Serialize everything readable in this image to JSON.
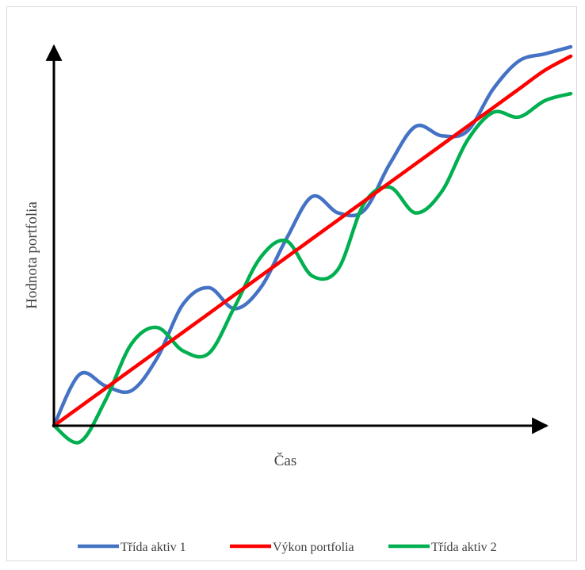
{
  "chart_data": {
    "type": "line",
    "title": "",
    "xlabel": "Čas",
    "ylabel": "Hodnota portfolia",
    "x_ticks_shown": false,
    "y_ticks_shown": false,
    "grid": false,
    "legend_position": "bottom",
    "xlim": [
      0,
      10
    ],
    "ylim": [
      0,
      8
    ],
    "x": [
      0,
      0.5,
      1,
      1.5,
      2,
      2.5,
      3,
      3.5,
      4,
      4.5,
      5,
      5.5,
      6,
      6.5,
      7,
      7.5,
      8,
      8.5,
      9,
      9.5,
      10
    ],
    "series": [
      {
        "name": "Třída aktiv 1",
        "color": "#4472c4",
        "values": [
          0.0,
          1.1,
          0.85,
          0.75,
          1.45,
          2.6,
          2.95,
          2.5,
          2.95,
          4.0,
          4.9,
          4.55,
          4.6,
          5.6,
          6.4,
          6.2,
          6.3,
          7.2,
          7.8,
          7.95,
          8.1
        ]
      },
      {
        "name": "Výkon portfolia",
        "color": "#ff0000",
        "values": [
          0.0,
          0.4,
          0.8,
          1.2,
          1.6,
          2.0,
          2.4,
          2.8,
          3.2,
          3.6,
          4.0,
          4.4,
          4.8,
          5.2,
          5.6,
          6.0,
          6.4,
          6.8,
          7.2,
          7.6,
          7.9
        ]
      },
      {
        "name": "Třída aktiv 2",
        "color": "#00b050",
        "values": [
          0.0,
          -0.35,
          0.55,
          1.75,
          2.1,
          1.6,
          1.55,
          2.55,
          3.6,
          3.95,
          3.2,
          3.35,
          4.75,
          5.1,
          4.55,
          5.0,
          6.1,
          6.7,
          6.6,
          6.95,
          7.1
        ]
      }
    ],
    "legend": [
      "Třída aktiv 1",
      "Výkon portfolia",
      "Třída aktiv 2"
    ],
    "axis_color": "#000000"
  }
}
